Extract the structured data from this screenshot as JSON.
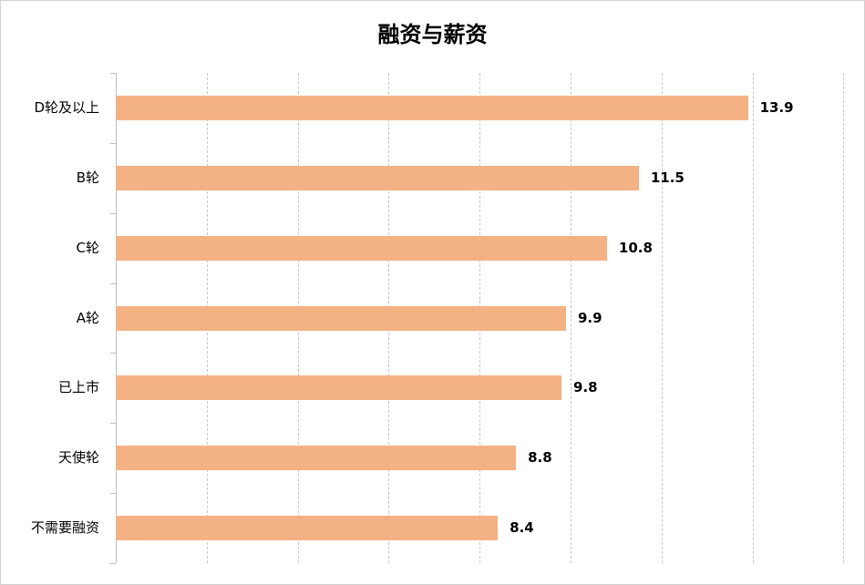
{
  "title": "融资与薪资",
  "chart_data": {
    "type": "bar",
    "orientation": "horizontal",
    "title": "融资与薪资",
    "categories": [
      "D轮及以上",
      "B轮",
      "C轮",
      "A轮",
      "已上市",
      "天使轮",
      "不需要融资"
    ],
    "values": [
      13.9,
      11.5,
      10.8,
      9.9,
      9.8,
      8.8,
      8.4
    ],
    "data_labels": [
      "13.9",
      "11.5",
      "10.8",
      "9.9",
      "9.8",
      "8.8",
      "8.4"
    ],
    "xlabel": "",
    "ylabel": "",
    "xlim": [
      0,
      16
    ],
    "grid_step": 2,
    "grid": true,
    "x_tick_labels_visible": false,
    "legend": null,
    "bar_color": "#f4b183"
  }
}
